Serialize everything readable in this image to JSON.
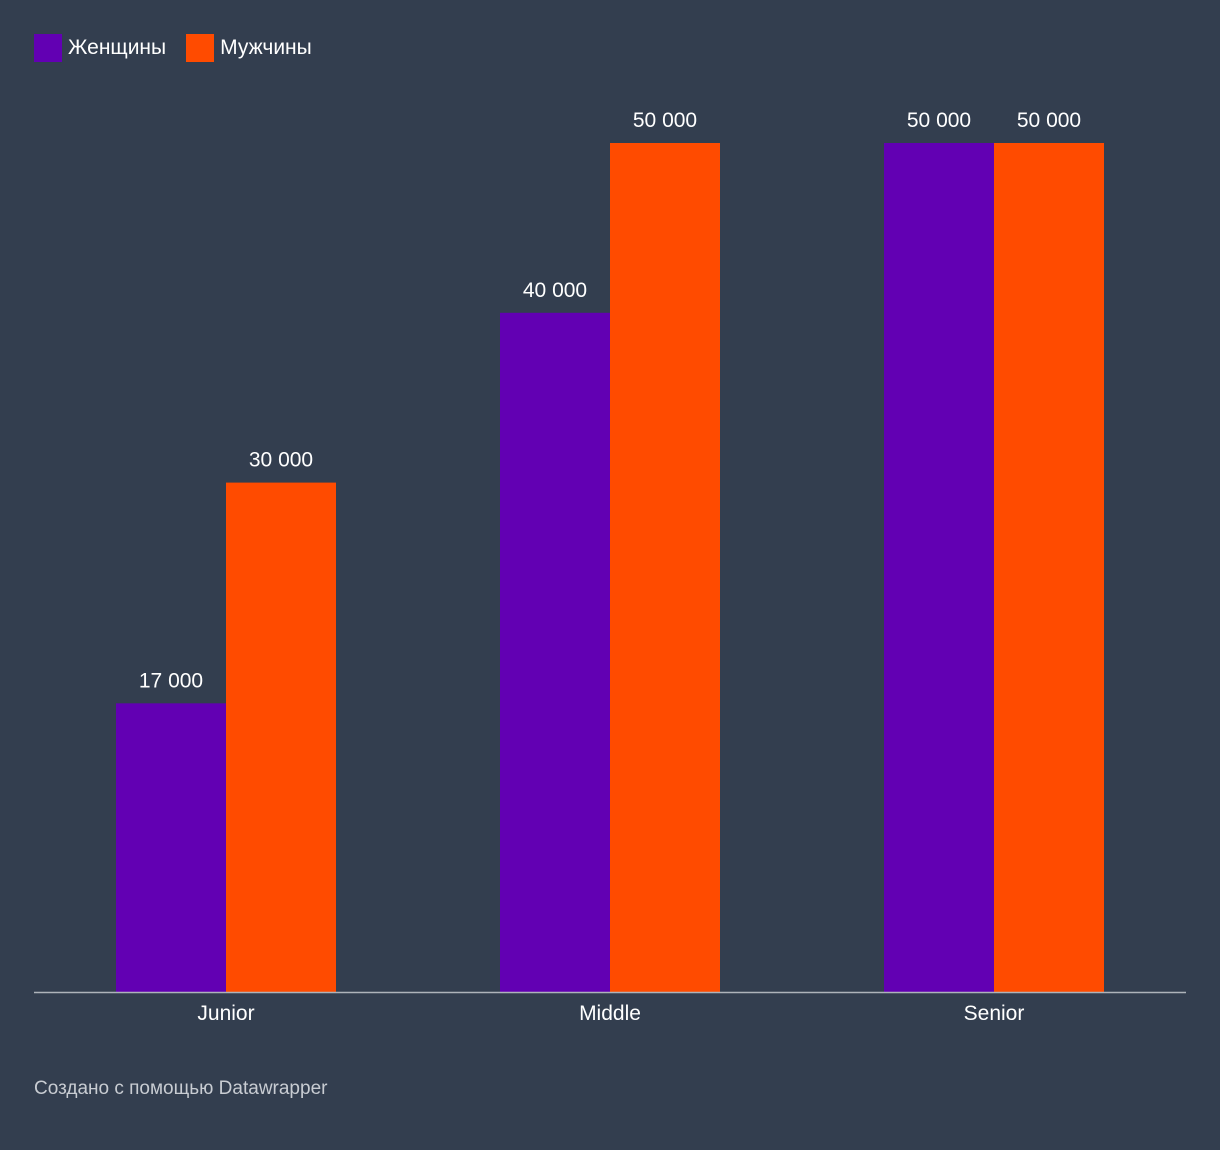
{
  "chart_data": {
    "type": "bar",
    "categories": [
      "Junior",
      "Middle",
      "Senior"
    ],
    "series": [
      {
        "name": "Женщины",
        "color": "#6200b3",
        "values": [
          17000,
          40000,
          50000
        ],
        "labels": [
          "17 000",
          "40 000",
          "50 000"
        ]
      },
      {
        "name": "Мужчины",
        "color": "#ff4b00",
        "values": [
          30000,
          50000,
          50000
        ],
        "labels": [
          "30 000",
          "50 000",
          "50 000"
        ]
      }
    ],
    "ylim": [
      0,
      50000
    ],
    "grid": false,
    "legend": "top-left"
  },
  "footer": "Создано с помощью Datawrapper"
}
